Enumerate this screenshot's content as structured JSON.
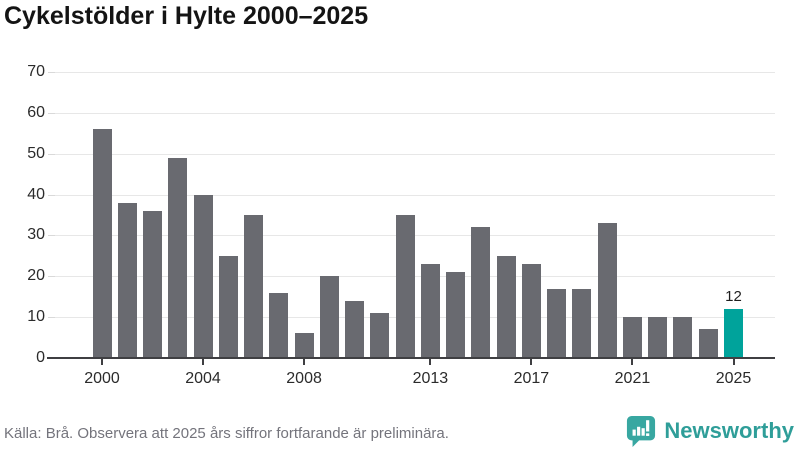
{
  "title": "Cykelstölder i Hylte 2000–2025",
  "footer": {
    "source_text": "Källa: Brå. Observera att 2025 års siffror fortfarande är preliminära.",
    "brand": "Newsworthy"
  },
  "colors": {
    "bar": "#696a70",
    "highlight": "#00a39b",
    "gridline": "#e7e7e7",
    "axis": "#3f3f42",
    "brand_teal": "#2f9e99",
    "logo_teal": "#38a7a1"
  },
  "chart_data": {
    "type": "bar",
    "title": "Cykelstölder i Hylte 2000–2025",
    "categories": [
      2000,
      2001,
      2002,
      2003,
      2004,
      2005,
      2006,
      2007,
      2008,
      2009,
      2010,
      2011,
      2012,
      2013,
      2014,
      2015,
      2016,
      2017,
      2018,
      2019,
      2020,
      2021,
      2022,
      2023,
      2024,
      2025
    ],
    "values": [
      56,
      38,
      36,
      49,
      40,
      25,
      35,
      16,
      6,
      20,
      14,
      11,
      35,
      23,
      21,
      32,
      25,
      23,
      17,
      17,
      33,
      10,
      10,
      10,
      7,
      12
    ],
    "highlight_category": 2025,
    "highlight_value_label": "12",
    "x_tick_labels": [
      "2000",
      "2004",
      "2008",
      "2013",
      "2017",
      "2021",
      "2025"
    ],
    "y_ticks": [
      0,
      10,
      20,
      30,
      40,
      50,
      60,
      70
    ],
    "ylim": [
      0,
      70
    ],
    "grid": "horizontal-only",
    "legend": "none"
  }
}
